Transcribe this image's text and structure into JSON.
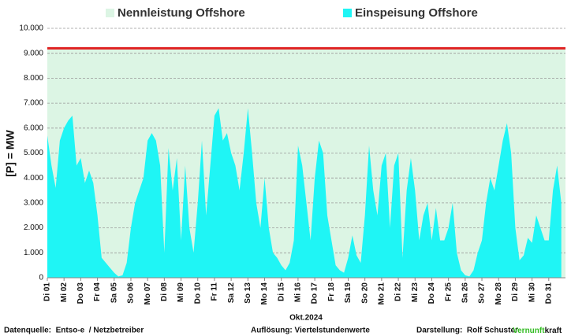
{
  "chart_data": {
    "type": "area",
    "legend": [
      {
        "name": "Nennleistung Offshore",
        "color": "#dcf5e4"
      },
      {
        "name": "Einspeisung Offshore",
        "color": "#1ff5f5"
      }
    ],
    "capacity": {
      "value": 9200,
      "fill": "#dcf5e4",
      "line_color": "#e02020"
    },
    "ylabel": "[P] = MW",
    "xlabel": "Okt.2024",
    "xlim": [
      0,
      31
    ],
    "xticks": [
      {
        "value": 0,
        "label": "Di 01"
      },
      {
        "value": 1,
        "label": "Mi 02"
      },
      {
        "value": 2,
        "label": "Do 03"
      },
      {
        "value": 3,
        "label": "Fr 04"
      },
      {
        "value": 4,
        "label": "Sa 05"
      },
      {
        "value": 5,
        "label": "So 06"
      },
      {
        "value": 6,
        "label": "Mo 07"
      },
      {
        "value": 7,
        "label": "Di 08"
      },
      {
        "value": 8,
        "label": "Mi 09"
      },
      {
        "value": 9,
        "label": "Do 10"
      },
      {
        "value": 10,
        "label": "Fr 11"
      },
      {
        "value": 11,
        "label": "Sa 12"
      },
      {
        "value": 12,
        "label": "So 13"
      },
      {
        "value": 13,
        "label": "Mo 14"
      },
      {
        "value": 14,
        "label": "Di 15"
      },
      {
        "value": 15,
        "label": "Mi 16"
      },
      {
        "value": 16,
        "label": "Do 17"
      },
      {
        "value": 17,
        "label": "Fr 18"
      },
      {
        "value": 18,
        "label": "Sa 19"
      },
      {
        "value": 19,
        "label": "So 20"
      },
      {
        "value": 20,
        "label": "Mo 21"
      },
      {
        "value": 21,
        "label": "Di 22"
      },
      {
        "value": 22,
        "label": "Mi 23"
      },
      {
        "value": 23,
        "label": "Do 24"
      },
      {
        "value": 24,
        "label": "Fr 25"
      },
      {
        "value": 25,
        "label": "Sa 26"
      },
      {
        "value": 26,
        "label": "So 27"
      },
      {
        "value": 27,
        "label": "Mo 28"
      },
      {
        "value": 28,
        "label": "Di 29"
      },
      {
        "value": 29,
        "label": "Mi 30"
      },
      {
        "value": 30,
        "label": "Do 31"
      }
    ],
    "ylim": [
      0,
      10000
    ],
    "yticks": [
      0,
      {
        "value": 1000,
        "label": "1.000"
      },
      {
        "value": 2000,
        "label": "2.000"
      },
      {
        "value": 3000,
        "label": "3.000"
      },
      {
        "value": 4000,
        "label": "4.000"
      },
      {
        "value": 5000,
        "label": "5.000"
      },
      {
        "value": 6000,
        "label": "6.000"
      },
      {
        "value": 7000,
        "label": "7.000"
      },
      {
        "value": 8000,
        "label": "8.000"
      },
      {
        "value": 9000,
        "label": "9.000"
      },
      {
        "value": 10000,
        "label": "10.000"
      }
    ],
    "grid": true,
    "x": [
      0,
      0.25,
      0.5,
      0.75,
      1,
      1.25,
      1.5,
      1.75,
      2,
      2.25,
      2.5,
      2.75,
      3,
      3.25,
      3.5,
      3.75,
      4,
      4.25,
      4.5,
      4.75,
      5,
      5.25,
      5.5,
      5.75,
      6,
      6.25,
      6.5,
      6.75,
      7,
      7.25,
      7.5,
      7.75,
      8,
      8.25,
      8.5,
      8.75,
      9,
      9.25,
      9.5,
      9.75,
      10,
      10.25,
      10.5,
      10.75,
      11,
      11.25,
      11.5,
      11.75,
      12,
      12.25,
      12.5,
      12.75,
      13,
      13.25,
      13.5,
      13.75,
      14,
      14.25,
      14.5,
      14.75,
      15,
      15.25,
      15.5,
      15.75,
      16,
      16.25,
      16.5,
      16.75,
      17,
      17.25,
      17.5,
      17.75,
      18,
      18.25,
      18.5,
      18.75,
      19,
      19.25,
      19.5,
      19.75,
      20,
      20.25,
      20.5,
      20.75,
      21,
      21.25,
      21.5,
      21.75,
      22,
      22.25,
      22.5,
      22.75,
      23,
      23.25,
      23.5,
      23.75,
      24,
      24.25,
      24.5,
      24.75,
      25,
      25.25,
      25.5,
      25.75,
      26,
      26.25,
      26.5,
      26.75,
      27,
      27.25,
      27.5,
      27.75,
      28,
      28.25,
      28.5,
      28.75,
      29,
      29.25,
      29.5,
      29.75,
      30,
      30.25,
      30.5,
      30.75
    ],
    "series": [
      {
        "name": "Einspeisung Offshore",
        "color": "#1ff5f5",
        "values": [
          5700,
          4500,
          3600,
          5500,
          6000,
          6300,
          6500,
          4500,
          4800,
          3800,
          4300,
          3800,
          2500,
          800,
          600,
          400,
          200,
          50,
          100,
          600,
          2000,
          3000,
          3500,
          4000,
          5500,
          5800,
          5500,
          4500,
          1000,
          5200,
          3500,
          4800,
          1500,
          4500,
          2000,
          1000,
          3000,
          5500,
          2500,
          4500,
          6500,
          6800,
          5500,
          5800,
          5000,
          4500,
          3500,
          5000,
          6800,
          5000,
          3000,
          2000,
          4000,
          2000,
          1000,
          800,
          500,
          300,
          600,
          1500,
          5300,
          4500,
          3000,
          1500,
          4000,
          5500,
          5000,
          2500,
          1500,
          500,
          300,
          200,
          800,
          1700,
          900,
          600,
          2500,
          5300,
          3500,
          2500,
          4500,
          5000,
          2000,
          4500,
          5000,
          800,
          3500,
          4800,
          3500,
          1500,
          2500,
          3000,
          1500,
          2800,
          1500,
          1500,
          2000,
          3000,
          1000,
          300,
          100,
          50,
          300,
          1000,
          1500,
          3000,
          4000,
          3500,
          4500,
          5500,
          6200,
          5000,
          2000,
          700,
          900,
          1600,
          1400,
          2500,
          2000,
          1500,
          1500,
          3500,
          4500,
          3000
        ]
      }
    ],
    "footer": {
      "source": "Datenquelle:  Entso-e  / Netzbetreiber",
      "resolution": "Auflösung: Viertelstundenwerte",
      "author": "Darstellung:  Rolf Schuster",
      "brand_green": "Vernunft",
      "brand_rest": "kraft"
    }
  }
}
